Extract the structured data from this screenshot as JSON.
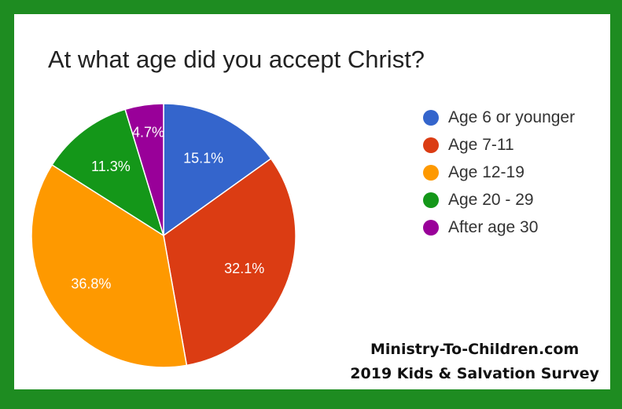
{
  "colors": {
    "border": "#1e8c21",
    "slices": [
      "#3465cc",
      "#db3c13",
      "#fe9900",
      "#149719",
      "#990099"
    ],
    "label_text": "#ffffff"
  },
  "chart_data": {
    "type": "pie",
    "title": "At what age did you accept Christ?",
    "categories": [
      "Age 6 or younger",
      "Age 7-11",
      "Age 12-19",
      "Age 20 - 29",
      "After age 30"
    ],
    "values": [
      15.1,
      32.1,
      36.8,
      11.3,
      4.7
    ],
    "value_labels": [
      "15.1%",
      "32.1%",
      "36.8%",
      "11.3%",
      "4.7%"
    ],
    "start_angle_deg": 90,
    "direction": "clockwise",
    "legend_position": "right"
  },
  "credit": {
    "line1": "Ministry-To-Children.com",
    "line2": "2019 Kids & Salvation Survey"
  }
}
